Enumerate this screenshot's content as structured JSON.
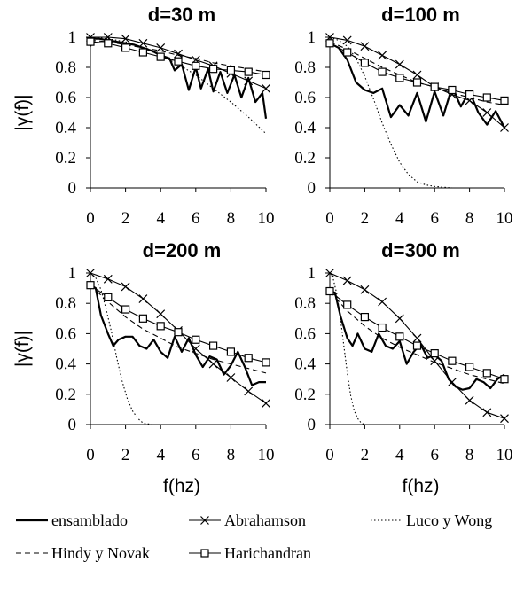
{
  "chart_data": [
    {
      "type": "line",
      "title": "d=30 m",
      "xlabel": "",
      "ylabel": "|γ(f)|",
      "xlim": [
        0,
        10
      ],
      "ylim": [
        0,
        1
      ],
      "xticks": [
        "0",
        "2",
        "4",
        "6",
        "8",
        "10"
      ],
      "yticks": [
        "0",
        "0.2",
        "0.4",
        "0.6",
        "0.8",
        "1"
      ],
      "series": [
        {
          "name": "ensamblado",
          "x": [
            0,
            0.1,
            0.5,
            1,
            1.5,
            2,
            2.5,
            3,
            3.5,
            4,
            4.5,
            4.8,
            5.2,
            5.6,
            6,
            6.3,
            6.7,
            7,
            7.4,
            7.8,
            8.2,
            8.6,
            9,
            9.4,
            9.8,
            10
          ],
          "y": [
            0.94,
            0.99,
            0.99,
            0.98,
            0.97,
            0.96,
            0.95,
            0.93,
            0.91,
            0.88,
            0.86,
            0.78,
            0.82,
            0.65,
            0.8,
            0.66,
            0.79,
            0.64,
            0.77,
            0.63,
            0.75,
            0.6,
            0.73,
            0.57,
            0.63,
            0.46
          ]
        },
        {
          "name": "Abrahamson",
          "x": [
            0,
            1,
            2,
            3,
            4,
            5,
            6,
            7,
            8,
            9,
            10
          ],
          "y": [
            1.0,
            1.0,
            0.99,
            0.96,
            0.93,
            0.89,
            0.85,
            0.81,
            0.76,
            0.71,
            0.66
          ]
        },
        {
          "name": "Luco y Wong",
          "x": [
            0,
            1,
            2,
            3,
            4,
            5,
            6,
            7,
            8,
            9,
            10
          ],
          "y": [
            1.0,
            0.99,
            0.97,
            0.93,
            0.88,
            0.82,
            0.75,
            0.66,
            0.57,
            0.47,
            0.36
          ]
        },
        {
          "name": "Hindy y Novak",
          "x": [
            0,
            1,
            2,
            3,
            4,
            5,
            6,
            7,
            8,
            9,
            10
          ],
          "y": [
            0.98,
            0.97,
            0.95,
            0.93,
            0.91,
            0.88,
            0.86,
            0.83,
            0.81,
            0.79,
            0.77
          ]
        },
        {
          "name": "Harichandran",
          "x": [
            0,
            1,
            2,
            3,
            4,
            5,
            6,
            7,
            8,
            9,
            10
          ],
          "y": [
            0.97,
            0.96,
            0.93,
            0.9,
            0.87,
            0.84,
            0.81,
            0.79,
            0.78,
            0.77,
            0.75
          ]
        }
      ]
    },
    {
      "type": "line",
      "title": "d=100 m",
      "xlabel": "",
      "ylabel": "",
      "xlim": [
        0,
        10
      ],
      "ylim": [
        0,
        1
      ],
      "xticks": [
        "0",
        "2",
        "4",
        "6",
        "8",
        "10"
      ],
      "yticks": [
        "0",
        "0.2",
        "0.4",
        "0.6",
        "0.8",
        "1"
      ],
      "series": [
        {
          "name": "ensamblado",
          "x": [
            0,
            0.5,
            1,
            1.5,
            2,
            2.5,
            3,
            3.5,
            4,
            4.5,
            5,
            5.5,
            6,
            6.5,
            7,
            7.5,
            8,
            8.5,
            9,
            9.5,
            10
          ],
          "y": [
            0.96,
            0.93,
            0.85,
            0.7,
            0.65,
            0.63,
            0.66,
            0.47,
            0.55,
            0.48,
            0.63,
            0.44,
            0.64,
            0.48,
            0.67,
            0.54,
            0.64,
            0.5,
            0.42,
            0.51,
            0.4
          ]
        },
        {
          "name": "Abrahamson",
          "x": [
            0,
            1,
            2,
            3,
            4,
            5,
            6,
            7,
            8,
            9,
            10
          ],
          "y": [
            1.0,
            0.98,
            0.94,
            0.88,
            0.82,
            0.75,
            0.67,
            0.62,
            0.58,
            0.5,
            0.4
          ]
        },
        {
          "name": "Luco y Wong",
          "x": [
            0,
            0.5,
            1,
            1.5,
            2,
            2.5,
            3,
            3.5,
            4,
            4.5,
            5,
            5.5,
            6,
            7,
            8,
            10
          ],
          "y": [
            1.0,
            0.98,
            0.94,
            0.86,
            0.74,
            0.59,
            0.43,
            0.29,
            0.17,
            0.09,
            0.04,
            0.02,
            0.01,
            0.0,
            0.0,
            0.0
          ]
        },
        {
          "name": "Hindy y Novak",
          "x": [
            0,
            1,
            2,
            3,
            4,
            5,
            6,
            7,
            8,
            9,
            10
          ],
          "y": [
            0.97,
            0.92,
            0.86,
            0.8,
            0.75,
            0.7,
            0.67,
            0.63,
            0.6,
            0.57,
            0.55
          ]
        },
        {
          "name": "Harichandran",
          "x": [
            0,
            1,
            2,
            3,
            4,
            5,
            6,
            7,
            8,
            9,
            10
          ],
          "y": [
            0.96,
            0.9,
            0.83,
            0.77,
            0.73,
            0.7,
            0.67,
            0.65,
            0.62,
            0.6,
            0.58
          ]
        }
      ]
    },
    {
      "type": "line",
      "title": "d=200 m",
      "xlabel": "f(hz)",
      "ylabel": "|γ(f)|",
      "xlim": [
        0,
        10
      ],
      "ylim": [
        0,
        1
      ],
      "xticks": [
        "0",
        "2",
        "4",
        "6",
        "8",
        "10"
      ],
      "yticks": [
        "0",
        "0.2",
        "0.4",
        "0.6",
        "0.8",
        "1"
      ],
      "series": [
        {
          "name": "ensamblado",
          "x": [
            0,
            0.3,
            0.6,
            1,
            1.3,
            1.6,
            2,
            2.4,
            2.8,
            3.2,
            3.6,
            4,
            4.4,
            4.8,
            5.2,
            5.6,
            6,
            6.4,
            6.8,
            7.2,
            7.6,
            8,
            8.4,
            8.8,
            9.2,
            9.6,
            10
          ],
          "y": [
            0.92,
            0.9,
            0.72,
            0.6,
            0.52,
            0.56,
            0.58,
            0.58,
            0.52,
            0.5,
            0.56,
            0.48,
            0.44,
            0.58,
            0.48,
            0.57,
            0.46,
            0.38,
            0.45,
            0.43,
            0.33,
            0.39,
            0.48,
            0.38,
            0.26,
            0.28,
            0.28
          ]
        },
        {
          "name": "Abrahamson",
          "x": [
            0,
            1,
            2,
            3,
            4,
            5,
            6,
            7,
            8,
            9,
            10
          ],
          "y": [
            1.0,
            0.96,
            0.91,
            0.83,
            0.73,
            0.62,
            0.5,
            0.4,
            0.31,
            0.22,
            0.14
          ]
        },
        {
          "name": "Luco y Wong",
          "x": [
            0,
            0.3,
            0.6,
            0.9,
            1.2,
            1.5,
            1.8,
            2.1,
            2.4,
            2.7,
            3.0,
            3.5,
            4,
            10
          ],
          "y": [
            1.0,
            0.97,
            0.89,
            0.76,
            0.61,
            0.44,
            0.29,
            0.17,
            0.09,
            0.04,
            0.01,
            0.0,
            0.0,
            0.0
          ]
        },
        {
          "name": "Hindy y Novak",
          "x": [
            0,
            1,
            2,
            3,
            4,
            5,
            6,
            7,
            8,
            9,
            10
          ],
          "y": [
            0.92,
            0.81,
            0.71,
            0.63,
            0.57,
            0.51,
            0.47,
            0.43,
            0.4,
            0.37,
            0.34
          ]
        },
        {
          "name": "Harichandran",
          "x": [
            0,
            1,
            2,
            3,
            4,
            5,
            6,
            7,
            8,
            9,
            10
          ],
          "y": [
            0.92,
            0.84,
            0.76,
            0.7,
            0.65,
            0.61,
            0.56,
            0.52,
            0.48,
            0.44,
            0.41
          ]
        }
      ]
    },
    {
      "type": "line",
      "title": "d=300 m",
      "xlabel": "f(hz)",
      "ylabel": "",
      "xlim": [
        0,
        10
      ],
      "ylim": [
        0,
        1
      ],
      "xticks": [
        "0",
        "2",
        "4",
        "6",
        "8",
        "10"
      ],
      "yticks": [
        "0",
        "0.2",
        "0.4",
        "0.6",
        "0.8",
        "1"
      ],
      "series": [
        {
          "name": "ensamblado",
          "x": [
            0,
            0.3,
            0.6,
            1,
            1.3,
            1.6,
            2,
            2.4,
            2.8,
            3.2,
            3.6,
            4,
            4.4,
            4.8,
            5.2,
            5.6,
            6,
            6.4,
            6.8,
            7.2,
            7.6,
            8,
            8.4,
            8.8,
            9.2,
            9.6,
            10
          ],
          "y": [
            0.88,
            0.87,
            0.72,
            0.57,
            0.52,
            0.6,
            0.5,
            0.48,
            0.6,
            0.52,
            0.5,
            0.55,
            0.4,
            0.48,
            0.53,
            0.44,
            0.46,
            0.42,
            0.3,
            0.25,
            0.23,
            0.24,
            0.3,
            0.28,
            0.24,
            0.3,
            0.33
          ]
        },
        {
          "name": "Abrahamson",
          "x": [
            0,
            1,
            2,
            3,
            4,
            5,
            6,
            7,
            8,
            9,
            10
          ],
          "y": [
            1.0,
            0.95,
            0.89,
            0.81,
            0.7,
            0.57,
            0.42,
            0.28,
            0.16,
            0.08,
            0.04
          ]
        },
        {
          "name": "Luco y Wong",
          "x": [
            0,
            0.2,
            0.4,
            0.6,
            0.8,
            1.0,
            1.2,
            1.4,
            1.6,
            1.8,
            2.0,
            2.5,
            3,
            10
          ],
          "y": [
            1.0,
            0.96,
            0.86,
            0.71,
            0.52,
            0.34,
            0.19,
            0.09,
            0.04,
            0.01,
            0.0,
            0.0,
            0.0,
            0.0
          ]
        },
        {
          "name": "Hindy y Novak",
          "x": [
            0,
            1,
            2,
            3,
            4,
            5,
            6,
            7,
            8,
            9,
            10
          ],
          "y": [
            0.88,
            0.75,
            0.65,
            0.57,
            0.51,
            0.46,
            0.41,
            0.37,
            0.33,
            0.3,
            0.27
          ]
        },
        {
          "name": "Harichandran",
          "x": [
            0,
            1,
            2,
            3,
            4,
            5,
            6,
            7,
            8,
            9,
            10
          ],
          "y": [
            0.88,
            0.79,
            0.71,
            0.64,
            0.58,
            0.52,
            0.47,
            0.42,
            0.38,
            0.34,
            0.3
          ]
        }
      ]
    }
  ],
  "legend": [
    {
      "name": "ensamblado",
      "style": "solid-thick"
    },
    {
      "name": "Abrahamson",
      "style": "cross-marker"
    },
    {
      "name": "Luco y Wong",
      "style": "dotted"
    },
    {
      "name": "Hindy y Novak",
      "style": "dashed"
    },
    {
      "name": "Harichandran",
      "style": "square-marker"
    }
  ],
  "colors": {
    "line": "#000000",
    "background": "#ffffff"
  }
}
